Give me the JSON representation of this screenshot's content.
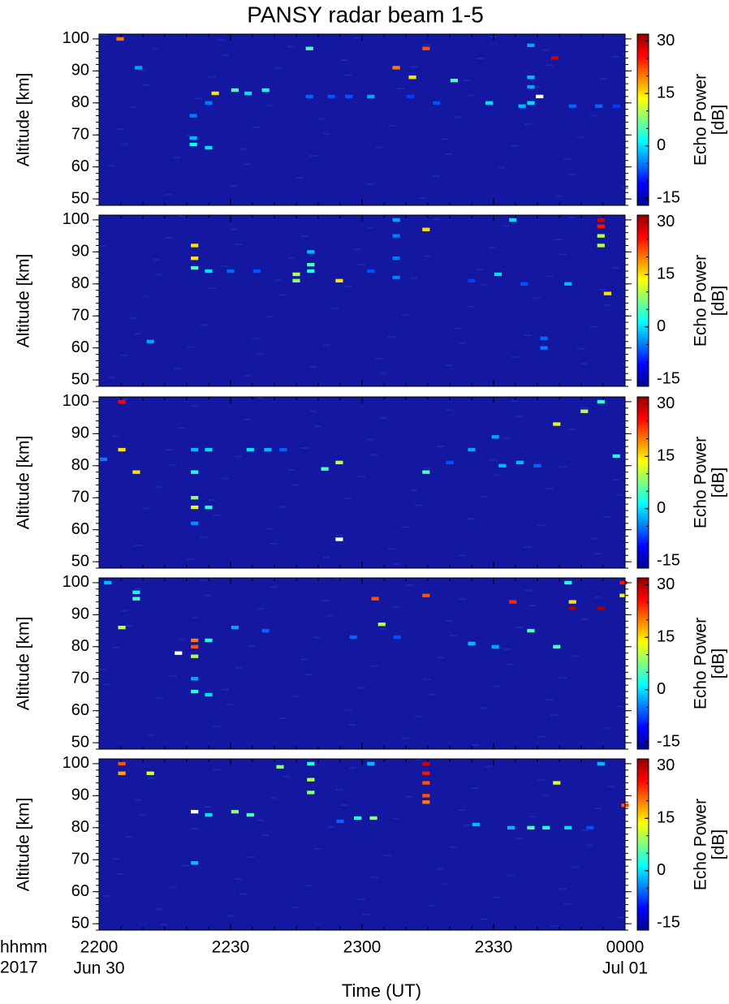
{
  "title": "PANSY radar beam 1-5",
  "x_label": "Time (UT)",
  "x_format_label": "hhmm",
  "year_label": "2017",
  "date_labels": [
    {
      "value": 0,
      "label": "Jun 30"
    },
    {
      "value": 120,
      "label": "Jul 01"
    }
  ],
  "chart_data": [
    {
      "type": "heatmap",
      "y_label": "Altitude [km]",
      "colorbar_label": "Echo Power",
      "colorbar_unit": "[dB]",
      "xlim": [
        0,
        120
      ],
      "xticks": [
        0,
        30,
        60,
        90,
        120
      ],
      "ylim": [
        48,
        101.5
      ],
      "yticks": [
        50,
        60,
        70,
        80,
        90,
        100
      ],
      "clim": [
        -17,
        32
      ],
      "cticks": [
        -15,
        0,
        15,
        30
      ],
      "cells": [
        [
          4.8,
          100,
          20
        ],
        [
          26.5,
          83,
          15
        ],
        [
          31,
          84,
          5
        ],
        [
          34,
          83,
          0
        ],
        [
          38,
          84,
          2
        ],
        [
          21.5,
          67,
          2
        ],
        [
          25,
          66,
          0
        ],
        [
          21.5,
          69,
          -2
        ],
        [
          21.5,
          76,
          -5
        ],
        [
          25,
          80,
          -5
        ],
        [
          67.8,
          91,
          20
        ],
        [
          71.5,
          88,
          15
        ],
        [
          74.6,
          97,
          22
        ],
        [
          104,
          94,
          28
        ],
        [
          100.5,
          82,
          35
        ],
        [
          98.5,
          80,
          0
        ],
        [
          96.5,
          79,
          -2
        ],
        [
          89,
          80,
          0
        ],
        [
          62,
          82,
          -3
        ],
        [
          48,
          97,
          5
        ],
        [
          81,
          87,
          5
        ],
        [
          98.5,
          88,
          -2
        ],
        [
          98.5,
          85,
          -3
        ],
        [
          98.5,
          98,
          -3
        ],
        [
          9,
          91,
          -3
        ],
        [
          48,
          82,
          -6
        ],
        [
          53,
          82,
          -7
        ],
        [
          57,
          82,
          -7
        ],
        [
          71,
          82,
          -8
        ],
        [
          77,
          80,
          -7
        ],
        [
          108,
          79,
          -6
        ],
        [
          114,
          79,
          -6
        ],
        [
          118,
          79,
          -8
        ]
      ]
    },
    {
      "type": "heatmap",
      "y_label": "Altitude [km]",
      "colorbar_label": "Echo Power",
      "colorbar_unit": "[dB]",
      "xlim": [
        0,
        120
      ],
      "xticks": [
        0,
        30,
        60,
        90,
        120
      ],
      "ylim": [
        48,
        101.5
      ],
      "yticks": [
        50,
        60,
        70,
        80,
        90,
        100
      ],
      "clim": [
        -17,
        32
      ],
      "cticks": [
        -15,
        0,
        15,
        30
      ],
      "cells": [
        [
          114.5,
          100,
          28
        ],
        [
          114.5,
          98,
          25
        ],
        [
          114.5,
          95,
          10
        ],
        [
          114.5,
          92,
          10
        ],
        [
          21.8,
          92,
          15
        ],
        [
          21.8,
          88,
          15
        ],
        [
          21.8,
          85,
          5
        ],
        [
          25,
          84,
          0
        ],
        [
          45,
          83,
          10
        ],
        [
          45,
          81,
          8
        ],
        [
          48.3,
          86,
          5
        ],
        [
          48.3,
          84,
          3
        ],
        [
          48.3,
          90,
          -2
        ],
        [
          67.8,
          100,
          -3
        ],
        [
          67.8,
          95,
          -5
        ],
        [
          67.8,
          88,
          -5
        ],
        [
          67.8,
          82,
          -5
        ],
        [
          116,
          77,
          15
        ],
        [
          101.5,
          60,
          -5
        ],
        [
          101.5,
          63,
          -6
        ],
        [
          94.4,
          100,
          0
        ],
        [
          74.6,
          97,
          15
        ],
        [
          91,
          83,
          0
        ],
        [
          107,
          80,
          -2
        ],
        [
          54.8,
          81,
          15
        ],
        [
          11.7,
          62,
          -3
        ],
        [
          30,
          84,
          -6
        ],
        [
          36,
          84,
          -7
        ],
        [
          62,
          84,
          -7
        ],
        [
          85,
          81,
          -8
        ],
        [
          97,
          80,
          -7
        ]
      ]
    },
    {
      "type": "heatmap",
      "y_label": "Altitude [km]",
      "colorbar_label": "Echo Power",
      "colorbar_unit": "[dB]",
      "xlim": [
        0,
        120
      ],
      "xticks": [
        0,
        30,
        60,
        90,
        120
      ],
      "ylim": [
        48,
        101.5
      ],
      "yticks": [
        50,
        60,
        70,
        80,
        90,
        100
      ],
      "clim": [
        -17,
        32
      ],
      "cticks": [
        -15,
        0,
        15,
        30
      ],
      "cells": [
        [
          5.2,
          100,
          26
        ],
        [
          5.2,
          85,
          15
        ],
        [
          8.5,
          78,
          15
        ],
        [
          21.8,
          67,
          12
        ],
        [
          21.8,
          70,
          8
        ],
        [
          25,
          67,
          3
        ],
        [
          21.8,
          78,
          3
        ],
        [
          21.8,
          85,
          -2
        ],
        [
          25,
          85,
          0
        ],
        [
          54.8,
          57,
          35
        ],
        [
          54.8,
          81,
          10
        ],
        [
          51.5,
          79,
          5
        ],
        [
          34.5,
          85,
          0
        ],
        [
          38.5,
          85,
          -2
        ],
        [
          74.6,
          78,
          5
        ],
        [
          92,
          80,
          -2
        ],
        [
          96,
          81,
          -2
        ],
        [
          90.4,
          89,
          -3
        ],
        [
          85,
          85,
          -3
        ],
        [
          104.4,
          93,
          12
        ],
        [
          110.7,
          97,
          10
        ],
        [
          114.5,
          100,
          3
        ],
        [
          118,
          83,
          3
        ],
        [
          21.8,
          62,
          -4
        ],
        [
          80,
          81,
          -7
        ],
        [
          100,
          80,
          -6
        ],
        [
          42,
          85,
          -6
        ],
        [
          1,
          82,
          -5
        ]
      ]
    },
    {
      "type": "heatmap",
      "y_label": "Altitude [km]",
      "colorbar_label": "Echo Power",
      "colorbar_unit": "[dB]",
      "xlim": [
        0,
        120
      ],
      "xticks": [
        0,
        30,
        60,
        90,
        120
      ],
      "ylim": [
        48,
        101.5
      ],
      "yticks": [
        50,
        60,
        70,
        80,
        90,
        100
      ],
      "clim": [
        -17,
        32
      ],
      "cticks": [
        -15,
        0,
        15,
        30
      ],
      "cells": [
        [
          119.6,
          100,
          25
        ],
        [
          119.6,
          96,
          12
        ],
        [
          21.8,
          80,
          22
        ],
        [
          21.8,
          82,
          20
        ],
        [
          21.8,
          77,
          10
        ],
        [
          25,
          82,
          3
        ],
        [
          18.1,
          78,
          35
        ],
        [
          21.8,
          66,
          3
        ],
        [
          25,
          65,
          0
        ],
        [
          21.8,
          70,
          -3
        ],
        [
          8.5,
          95,
          5
        ],
        [
          8.5,
          97,
          2
        ],
        [
          5.2,
          86,
          10
        ],
        [
          63,
          95,
          22
        ],
        [
          74.6,
          96,
          22
        ],
        [
          64.5,
          87,
          10
        ],
        [
          94.4,
          94,
          24
        ],
        [
          98.5,
          85,
          5
        ],
        [
          104.4,
          80,
          5
        ],
        [
          108,
          92,
          30
        ],
        [
          114.5,
          92,
          30
        ],
        [
          108,
          94,
          15
        ],
        [
          107,
          100,
          3
        ],
        [
          85,
          81,
          -2
        ],
        [
          90.4,
          80,
          -3
        ],
        [
          31,
          86,
          -3
        ],
        [
          38,
          85,
          -6
        ],
        [
          58,
          83,
          -6
        ],
        [
          68,
          83,
          -7
        ],
        [
          2,
          100,
          -2
        ]
      ]
    },
    {
      "type": "heatmap",
      "y_label": "Altitude [km]",
      "colorbar_label": "Echo Power",
      "colorbar_unit": "[dB]",
      "xlim": [
        0,
        120
      ],
      "xticks": [
        {
          "value": 0,
          "label": "2200"
        },
        {
          "value": 30,
          "label": "2230"
        },
        {
          "value": 60,
          "label": "2300"
        },
        {
          "value": 90,
          "label": "2330"
        },
        {
          "value": 120,
          "label": "0000"
        }
      ],
      "ylim": [
        48,
        101.5
      ],
      "yticks": [
        50,
        60,
        70,
        80,
        90,
        100
      ],
      "clim": [
        -17,
        32
      ],
      "cticks": [
        -15,
        0,
        15,
        30
      ],
      "cells": [
        [
          5.2,
          100,
          22
        ],
        [
          5.2,
          97,
          18
        ],
        [
          11.7,
          97,
          12
        ],
        [
          21.8,
          85,
          35
        ],
        [
          31,
          85,
          8
        ],
        [
          34.5,
          84,
          5
        ],
        [
          25,
          84,
          0
        ],
        [
          74.6,
          100,
          28
        ],
        [
          74.6,
          97,
          25
        ],
        [
          74.6,
          94,
          22
        ],
        [
          74.6,
          90,
          22
        ],
        [
          74.6,
          88,
          20
        ],
        [
          48.3,
          95,
          10
        ],
        [
          48.3,
          91,
          8
        ],
        [
          48.3,
          100,
          3
        ],
        [
          62.6,
          83,
          8
        ],
        [
          59,
          83,
          3
        ],
        [
          41.3,
          99,
          8
        ],
        [
          62,
          100,
          -2
        ],
        [
          104.4,
          94,
          12
        ],
        [
          98.5,
          80,
          5
        ],
        [
          102,
          80,
          3
        ],
        [
          107,
          80,
          0
        ],
        [
          94,
          80,
          -2
        ],
        [
          114.5,
          100,
          -2
        ],
        [
          120,
          87,
          22
        ],
        [
          21.8,
          69,
          -2
        ],
        [
          86,
          81,
          -2
        ],
        [
          55,
          82,
          -6
        ],
        [
          112,
          80,
          -7
        ]
      ]
    }
  ]
}
